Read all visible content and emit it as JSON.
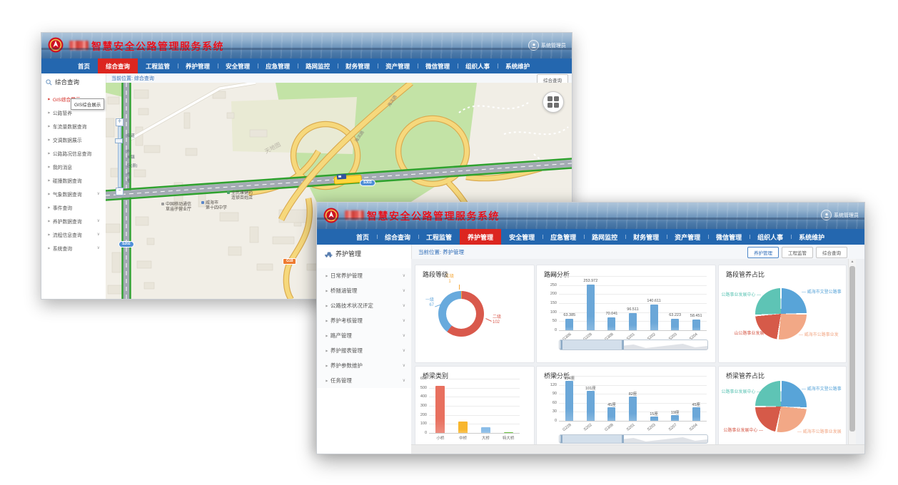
{
  "app": {
    "title": "智慧安全公路管理服务系统",
    "user_badge": "系统管理员",
    "nav_items": [
      "首页",
      "综合查询",
      "工程监管",
      "养护管理",
      "安全管理",
      "应急管理",
      "路网监控",
      "财务管理",
      "资产管理",
      "微信管理",
      "组织人事",
      "系统维护"
    ]
  },
  "back_window": {
    "active_nav": "综合查询",
    "breadcrumb": "当前位置: 综合查询",
    "corner_buttons": [
      {
        "label": "综合查询",
        "active": false
      }
    ],
    "sidebar_title": "综合查询",
    "sidebar_items": [
      {
        "label": "GIS综合展示",
        "active": true
      },
      {
        "label": "公路管养"
      },
      {
        "label": "车流量数据查询"
      },
      {
        "label": "交调数据展示"
      },
      {
        "label": "公路路况信息查询"
      },
      {
        "label": "我的消息"
      },
      {
        "label": "碰撞数据查询"
      },
      {
        "label": "气象数据查询",
        "chevron": true
      },
      {
        "label": "事件查询"
      },
      {
        "label": "养护数据查询",
        "chevron": true
      },
      {
        "label": "流程信息查询",
        "chevron": true
      },
      {
        "label": "系统查询",
        "chevron": true
      }
    ],
    "tooltip": "GIS综合展示",
    "map": {
      "zoom_ticks": [
        "街道",
        "村",
        "乡镇",
        "区(县)",
        "市",
        "省"
      ],
      "badges": [
        {
          "text": "S202",
          "kind": "s"
        },
        {
          "text": "S303",
          "kind": "s"
        },
        {
          "text": "G18",
          "kind": "g"
        }
      ],
      "pois": [
        {
          "lines": [
            "中国移动通信",
            "草庙子营业厅"
          ],
          "dot": "#9a9a9a"
        },
        {
          "lines": [
            "威海市",
            "第十四中学"
          ],
          "dot": "#5b87c9"
        },
        {
          "lines": [
            "全民康健药",
            "连锁百姓店"
          ],
          "dot": "#4aa06a"
        }
      ],
      "road_label": "海滨路",
      "watermark": "天地图"
    }
  },
  "front_window": {
    "active_nav": "养护管理",
    "breadcrumb": "当前位置: 养护管理",
    "corner_buttons": [
      {
        "label": "养护管理",
        "active": true
      },
      {
        "label": "工程监管",
        "active": false
      },
      {
        "label": "综合查询",
        "active": false
      }
    ],
    "sidebar_title": "养护管理",
    "sidebar_items": [
      {
        "label": "日常养护管理",
        "chevron": true
      },
      {
        "label": "桥隧涵管理",
        "chevron": true
      },
      {
        "label": "公路技术状况评定",
        "chevron": true
      },
      {
        "label": "养护考核管理",
        "chevron": true
      },
      {
        "label": "路产管理",
        "chevron": true
      },
      {
        "label": "养护报表管理",
        "chevron": true
      },
      {
        "label": "养护参数维护",
        "chevron": true
      },
      {
        "label": "任务管理",
        "chevron": true
      }
    ]
  },
  "chart_data": [
    {
      "type": "pie",
      "variant": "donut",
      "title": "路段等级",
      "slices": [
        {
          "name": "三级",
          "value": 1,
          "color": "#f5a93b"
        },
        {
          "name": "二级",
          "value": 102,
          "color": "#d9594c"
        },
        {
          "name": "一级",
          "value": 67,
          "color": "#68aadd"
        }
      ]
    },
    {
      "type": "bar",
      "title": "路网分析",
      "categories": [
        "G306",
        "G228",
        "G308",
        "S201",
        "S202",
        "S203",
        "S204"
      ],
      "values": [
        63.385,
        253.972,
        70.041,
        96.511,
        140.611,
        63.223,
        58.451
      ],
      "value_labels": [
        "63.385",
        "253.972",
        "70.041",
        "96.511",
        "140.611",
        "63.223",
        "58.451"
      ],
      "ylim": [
        0,
        300
      ],
      "ytick_step": 50,
      "bar_color": "#6ba7d8",
      "data_zoom": true
    },
    {
      "type": "pie",
      "title": "路段管养占比",
      "slices": [
        {
          "name": "威海市文登公路事",
          "value": 25,
          "color": "#58a4d8",
          "side": "right"
        },
        {
          "name": "威海市公路事业发",
          "value": 27,
          "color": "#f2a886",
          "side": "right"
        },
        {
          "name": "山公路事业发展中心",
          "value": 22,
          "color": "#d65a49",
          "side": "left"
        },
        {
          "name": "公路事业发展中心",
          "value": 26,
          "color": "#5ec4b5",
          "side": "left"
        }
      ]
    },
    {
      "type": "bar",
      "title": "桥梁类别",
      "categories": [
        "小桥",
        "中桥",
        "大桥",
        "特大桥"
      ],
      "values": [
        520,
        125,
        60,
        5
      ],
      "colors": [
        "#e8705f",
        "#f8b62d",
        "#8bbde8",
        "#67c23a"
      ],
      "ylim": [
        0,
        600
      ],
      "ytick_step": 100,
      "data_zoom": false
    },
    {
      "type": "bar",
      "title": "桥梁分析",
      "categories": [
        "G228",
        "S202",
        "G308",
        "S201",
        "S203",
        "S207",
        "S204"
      ],
      "values": [
        134,
        101,
        45,
        82,
        15,
        19,
        45
      ],
      "value_labels": [
        "134座",
        "101座",
        "45座",
        "82座",
        "15座",
        "19座",
        "45座"
      ],
      "ylim": [
        0,
        150
      ],
      "ytick_step": 30,
      "bar_color": "#6ba7d8",
      "data_zoom": true
    },
    {
      "type": "pie",
      "title": "桥梁管养占比",
      "slices": [
        {
          "name": "威海市文登公路事",
          "value": 26,
          "color": "#58a4d8",
          "side": "right"
        },
        {
          "name": "威海市公路事业发展",
          "value": 27,
          "color": "#f2a886",
          "side": "right"
        },
        {
          "name": "公路事业发展中心",
          "value": 22,
          "color": "#d65a49",
          "side": "left"
        },
        {
          "name": "公路事业发展中心",
          "value": 25,
          "color": "#5ec4b5",
          "side": "left"
        }
      ]
    }
  ]
}
